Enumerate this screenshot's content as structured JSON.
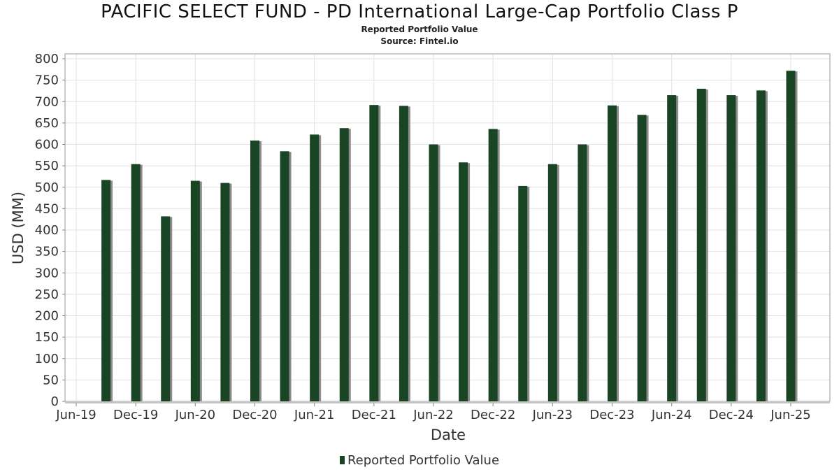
{
  "chart_data": {
    "type": "bar",
    "title": "PACIFIC SELECT FUND - PD International Large-Cap Portfolio Class P",
    "subtitle": "Reported Portfolio Value",
    "source": "Source: Fintel.io",
    "xlabel": "Date",
    "ylabel": "USD (MM)",
    "ylim": [
      0,
      800
    ],
    "yticks": [
      0,
      50,
      100,
      150,
      200,
      250,
      300,
      350,
      400,
      450,
      500,
      550,
      600,
      650,
      700,
      750,
      800
    ],
    "xticks": [
      "Jun-19",
      "Dec-19",
      "Jun-20",
      "Dec-20",
      "Jun-21",
      "Dec-21",
      "Jun-22",
      "Dec-22",
      "Jun-23",
      "Dec-23",
      "Jun-24",
      "Dec-24",
      "Jun-25"
    ],
    "grid": true,
    "legend_position": "bottom",
    "series": [
      {
        "name": "Reported Portfolio Value",
        "color": "#1a4524",
        "x": [
          "Sep-19",
          "Dec-19",
          "Mar-20",
          "Jun-20",
          "Sep-20",
          "Dec-20",
          "Mar-21",
          "Jun-21",
          "Sep-21",
          "Dec-21",
          "Mar-22",
          "Jun-22",
          "Sep-22",
          "Dec-22",
          "Mar-23",
          "Jun-23",
          "Sep-23",
          "Dec-23",
          "Mar-24",
          "Jun-24",
          "Sep-24",
          "Dec-24",
          "Mar-25",
          "Jun-25"
        ],
        "values": [
          517,
          554,
          432,
          515,
          510,
          609,
          584,
          623,
          638,
          692,
          690,
          600,
          558,
          636,
          503,
          554,
          600,
          691,
          669,
          715,
          730,
          715,
          726,
          772
        ]
      }
    ]
  }
}
